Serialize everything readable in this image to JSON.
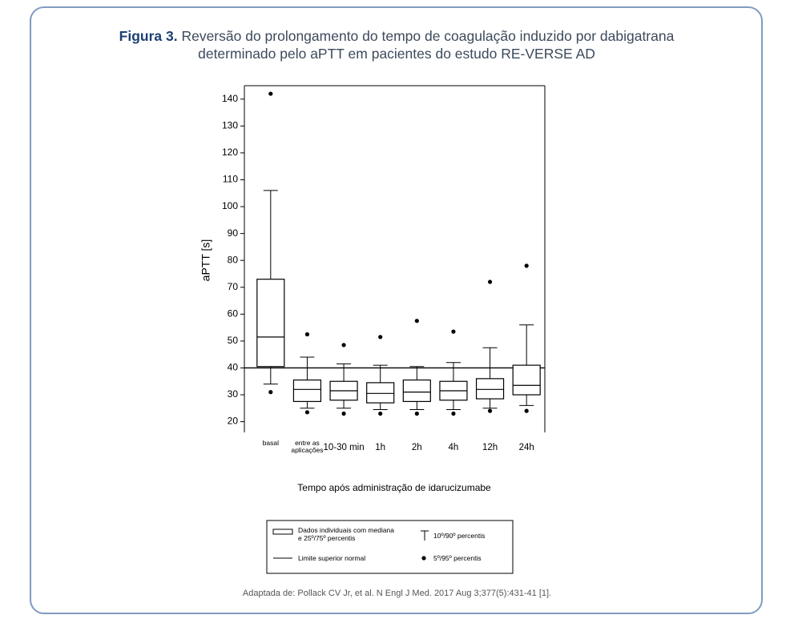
{
  "chart_data": {
    "type": "box",
    "title_label": "Figura 3.",
    "title": "Reversão do prolongamento do tempo de coagulação induzido por dabigatrana determinado pelo aPTT em pacientes do estudo RE-VERSE AD",
    "y_label": "aPTT [s]",
    "x_label": "Tempo após administração de idarucizumabe",
    "categories": [
      "basal",
      "entre as aplicações",
      "10-30 min",
      "1h",
      "2h",
      "4h",
      "12h",
      "24h"
    ],
    "outlier_high": [
      142,
      52.5,
      48.5,
      51.5,
      57.5,
      53.5,
      72,
      78
    ],
    "whisker_high": [
      106,
      44,
      41.5,
      41,
      40.5,
      42,
      47.5,
      56
    ],
    "q3": [
      73,
      35.5,
      35,
      34.5,
      35.5,
      35,
      36,
      41
    ],
    "median": [
      51.5,
      32,
      31.5,
      30.5,
      31,
      31.5,
      32,
      33.5
    ],
    "q1": [
      40.5,
      27.5,
      28,
      27,
      27.5,
      28,
      28.5,
      30
    ],
    "whisker_low": [
      34,
      25,
      25,
      24.5,
      24.5,
      24.5,
      25,
      26
    ],
    "outlier_low": [
      31,
      23.5,
      23,
      23,
      23,
      23,
      24,
      24
    ],
    "reference_line": {
      "value": 40,
      "label": "Limite superior normal"
    },
    "legend": {
      "box": "Dados individuais com mediana e 25º/75º percentis",
      "whisker": "10º/90º percentis",
      "dots": "5º/95º percentis"
    },
    "color": "#000000",
    "ylim": [
      16,
      145
    ],
    "yticks": [
      20,
      30,
      40,
      50,
      60,
      70,
      80,
      90,
      100,
      110,
      120,
      130,
      140
    ],
    "source": "Adaptada de: Pollack CV Jr, et al. N Engl J Med. 2017 Aug 3;377(5):431-41 [1]."
  }
}
